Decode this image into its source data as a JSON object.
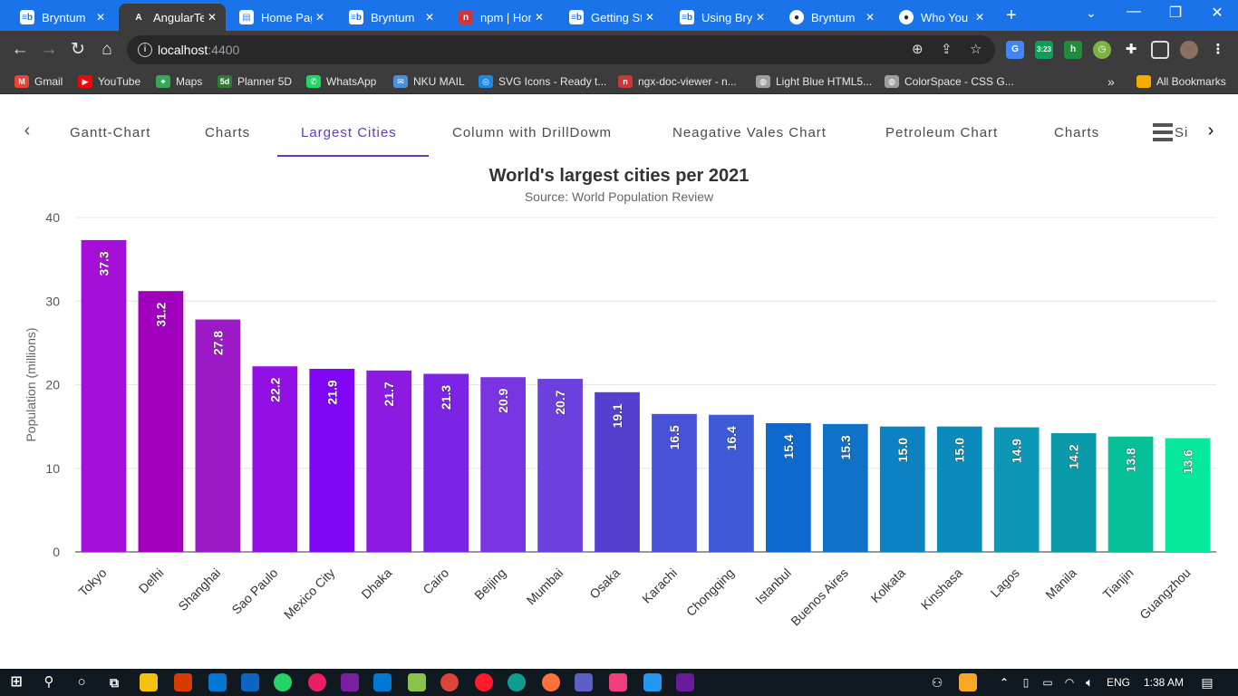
{
  "browser": {
    "tabs": [
      {
        "title": "Bryntum",
        "favicon": "bryntum-icon",
        "active": false
      },
      {
        "title": "AngularTe",
        "favicon": "angular-icon",
        "active": true
      },
      {
        "title": "Home Pag",
        "favicon": "document-icon",
        "active": false
      },
      {
        "title": "Bryntum",
        "favicon": "bryntum-icon",
        "active": false
      },
      {
        "title": "npm | Hor",
        "favicon": "npm-icon",
        "active": false
      },
      {
        "title": "Getting St",
        "favicon": "bryntum-icon",
        "active": false
      },
      {
        "title": "Using Bry",
        "favicon": "bryntum-icon",
        "active": false
      },
      {
        "title": "Bryntum",
        "favicon": "github-icon",
        "active": false
      },
      {
        "title": "Who You",
        "favicon": "github-icon",
        "active": false
      }
    ],
    "url_host": "localhost",
    "url_port": ":4400",
    "extension_badge": "3:23",
    "bookmarks": [
      {
        "label": "Gmail",
        "icon": "gmail-icon"
      },
      {
        "label": "YouTube",
        "icon": "youtube-icon"
      },
      {
        "label": "Maps",
        "icon": "maps-icon"
      },
      {
        "label": "Planner 5D",
        "icon": "planner5d-icon"
      },
      {
        "label": "WhatsApp",
        "icon": "whatsapp-icon"
      },
      {
        "label": "NKU MAIL",
        "icon": "mail-icon"
      },
      {
        "label": "SVG Icons - Ready t...",
        "icon": "svg-icons-icon"
      },
      {
        "label": "ngx-doc-viewer - n...",
        "icon": "npm-icon"
      },
      {
        "label": "Light Blue HTML5...",
        "icon": "globe-icon"
      },
      {
        "label": "ColorSpace - CSS G...",
        "icon": "globe-icon"
      }
    ],
    "bookmarks_overflow": "»",
    "all_bookmarks": "All Bookmarks"
  },
  "nav": {
    "tabs": [
      "Gantt-Chart",
      "Charts",
      "Largest Cities",
      "Column with DrillDowm",
      "Neagative Vales Chart",
      "Petroleum Chart",
      "Charts",
      "Si"
    ],
    "active_index": 2
  },
  "chart_data": {
    "type": "bar",
    "title": "World's largest cities per 2021",
    "subtitle": "Source: World Population Review",
    "ylabel": "Population (millions)",
    "ylim": [
      0,
      40
    ],
    "yticks": [
      0,
      10,
      20,
      30,
      40
    ],
    "grid": true,
    "categories": [
      "Tokyo",
      "Delhi",
      "Shanghai",
      "Sao Paulo",
      "Mexico City",
      "Dhaka",
      "Cairo",
      "Beijing",
      "Mumbai",
      "Osaka",
      "Karachi",
      "Chongqing",
      "Istanbul",
      "Buenos Aires",
      "Kolkata",
      "Kinshasa",
      "Lagos",
      "Manila",
      "Tianjin",
      "Guangzhou"
    ],
    "values": [
      37.3,
      31.2,
      27.8,
      22.2,
      21.9,
      21.7,
      21.3,
      20.9,
      20.7,
      19.1,
      16.5,
      16.4,
      15.4,
      15.3,
      15.0,
      15.0,
      14.9,
      14.2,
      13.8,
      13.6
    ],
    "data_labels": [
      "37.3",
      "31.2",
      "27.8",
      "22.2",
      "21.9",
      "21.7",
      "21.3",
      "20.9",
      "20.7",
      "19.1",
      "16.5",
      "16.4",
      "15.4",
      "15.3",
      "15.0",
      "15.0",
      "14.9",
      "14.2",
      "13.8",
      "13.6"
    ],
    "colors": [
      "#a50fd8",
      "#a100bf",
      "#9c19c6",
      "#9210e6",
      "#8106f6",
      "#8c1ae0",
      "#7d23e6",
      "#7a35e2",
      "#6c3fde",
      "#5440cf",
      "#4852d8",
      "#3e5bd7",
      "#0e69cf",
      "#0e72c9",
      "#0d82c2",
      "#0b8bbb",
      "#0c97b6",
      "#0b9aa9",
      "#05bf98",
      "#06e89a"
    ]
  },
  "taskbar": {
    "language": "ENG",
    "time": "1:38 AM"
  }
}
